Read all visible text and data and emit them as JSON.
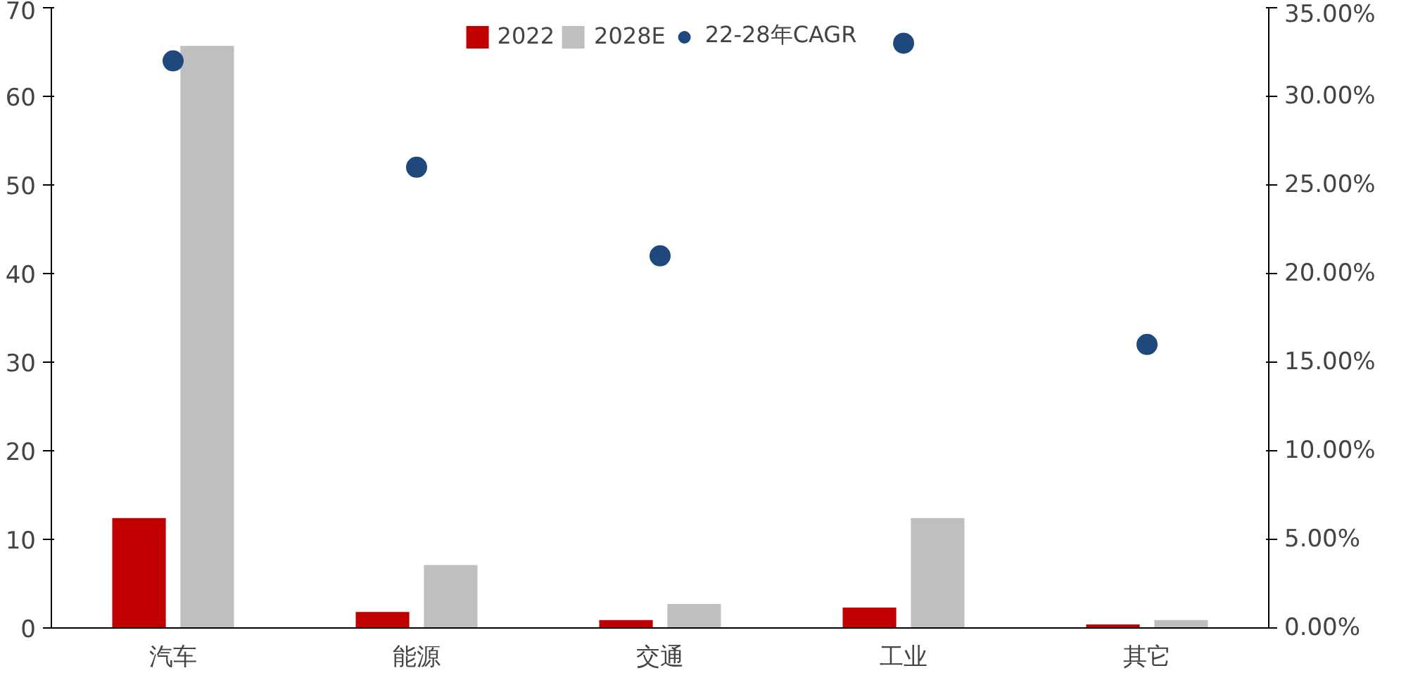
{
  "chart_data": {
    "type": "bar",
    "categories": [
      "汽车",
      "能源",
      "交通",
      "工业",
      "其它"
    ],
    "series": [
      {
        "name": "2022",
        "color": "#c00000",
        "values": [
          12.4,
          1.8,
          0.9,
          2.3,
          0.4
        ]
      },
      {
        "name": "2028E",
        "color": "#bfbfbf",
        "values": [
          65.7,
          7.1,
          2.7,
          12.4,
          0.9
        ]
      },
      {
        "name": "22-28年CAGR",
        "type": "scatter",
        "axis": "y2",
        "color": "#1f497d",
        "values": [
          32.0,
          26.0,
          21.0,
          33.0,
          16.0
        ]
      }
    ],
    "ylim": [
      0,
      70
    ],
    "yticks": [
      0,
      10,
      20,
      30,
      40,
      50,
      60,
      70
    ],
    "y2lim": [
      0,
      35
    ],
    "y2ticks": [
      {
        "value": 0,
        "label": "0.00%"
      },
      {
        "value": 5,
        "label": "5.00%"
      },
      {
        "value": 10,
        "label": "10.00%"
      },
      {
        "value": 15,
        "label": "15.00%"
      },
      {
        "value": 20,
        "label": "20.00%"
      },
      {
        "value": 25,
        "label": "25.00%"
      },
      {
        "value": 30,
        "label": "30.00%"
      },
      {
        "value": 35,
        "label": "35.00%"
      }
    ],
    "legend": "top",
    "grid": false,
    "marker": "circle"
  }
}
